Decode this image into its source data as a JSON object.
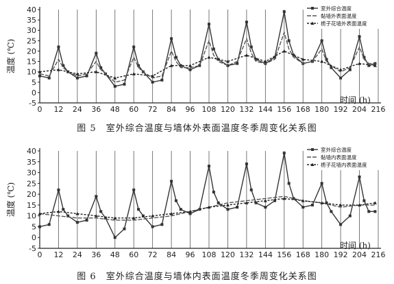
{
  "charts": [
    {
      "caption": "图 5　室外综合温度与墙体外表面温度冬季周变化关系图",
      "chart_data": {
        "type": "line",
        "ylabel": "温度 (℃)",
        "xlabel": "时间 (h)",
        "ylim": [
          -5,
          40
        ],
        "yticks": [
          -5,
          0,
          5,
          10,
          15,
          20,
          25,
          30,
          35,
          40
        ],
        "xlim": [
          0,
          216
        ],
        "xticks": [
          0,
          12,
          24,
          36,
          48,
          60,
          72,
          84,
          96,
          108,
          120,
          132,
          144,
          156,
          168,
          180,
          192,
          204,
          216
        ],
        "grid": "vertical",
        "legend_position": "top-right",
        "series": [
          {
            "name": "室外综合温度",
            "color": "#333333",
            "dash": "",
            "marker": "square",
            "x": [
              0,
              6,
              12,
              15,
              18,
              24,
              30,
              36,
              39,
              42,
              48,
              54,
              60,
              63,
              66,
              72,
              78,
              84,
              87,
              90,
              96,
              102,
              108,
              111,
              114,
              120,
              126,
              132,
              135,
              138,
              144,
              150,
              156,
              159,
              162,
              168,
              174,
              180,
              183,
              186,
              192,
              198,
              204,
              207,
              210,
              214
            ],
            "y": [
              8,
              7,
              22,
              13,
              10,
              7,
              8,
              19,
              12,
              9,
              3,
              4,
              22,
              13,
              10,
              5,
              6,
              26,
              17,
              13,
              11,
              13,
              33,
              21,
              16,
              13,
              14,
              34,
              22,
              16,
              14,
              17,
              39,
              25,
              18,
              14,
              15,
              25,
              16,
              12,
              7,
              11,
              27,
              17,
              13,
              14
            ]
          },
          {
            "name": "黏墙外表面温度",
            "color": "#555555",
            "dash": "6,2",
            "marker": "",
            "x": [
              0,
              6,
              12,
              15,
              18,
              24,
              30,
              36,
              39,
              42,
              48,
              54,
              60,
              63,
              66,
              72,
              78,
              84,
              87,
              90,
              96,
              102,
              108,
              111,
              114,
              120,
              126,
              132,
              135,
              138,
              144,
              150,
              156,
              159,
              162,
              168,
              174,
              180,
              183,
              186,
              192,
              198,
              204,
              207,
              210,
              214
            ],
            "y": [
              9,
              8,
              16,
              12,
              10,
              8,
              9,
              15,
              11,
              9,
              5,
              6,
              17,
              12,
              10,
              7,
              8,
              20,
              15,
              12,
              12,
              13,
              25,
              18,
              15,
              13,
              15,
              26,
              19,
              15,
              14,
              16,
              29,
              21,
              17,
              14,
              15,
              21,
              15,
              13,
              10,
              12,
              22,
              16,
              14,
              14
            ]
          },
          {
            "name": "栀子花墙外表面温度",
            "color": "#222222",
            "dash": "3,2",
            "marker": "triangle",
            "x": [
              0,
              12,
              24,
              36,
              48,
              60,
              72,
              84,
              96,
              108,
              120,
              132,
              144,
              156,
              168,
              180,
              192,
              204,
              214
            ],
            "y": [
              10,
              11,
              9,
              10,
              7,
              9,
              8,
              13,
              13,
              17,
              15,
              18,
              15,
              20,
              16,
              15,
              11,
              14,
              13
            ]
          }
        ]
      }
    },
    {
      "caption": "图 6　室外综合温度与墙体内表面温度冬季周变化关系图",
      "chart_data": {
        "type": "line",
        "ylabel": "温度 (℃)",
        "xlabel": "时间 (h)",
        "ylim": [
          -5,
          40
        ],
        "yticks": [
          -5,
          0,
          5,
          10,
          15,
          20,
          25,
          30,
          35,
          40
        ],
        "xlim": [
          0,
          216
        ],
        "xticks": [
          0,
          12,
          24,
          36,
          48,
          60,
          72,
          84,
          96,
          108,
          120,
          132,
          144,
          156,
          168,
          180,
          192,
          204,
          216
        ],
        "grid": "vertical",
        "legend_position": "top-right",
        "series": [
          {
            "name": "室外综合温度",
            "color": "#333333",
            "dash": "",
            "marker": "square",
            "x": [
              0,
              6,
              12,
              15,
              18,
              24,
              30,
              36,
              39,
              42,
              48,
              54,
              60,
              63,
              66,
              72,
              78,
              84,
              87,
              90,
              96,
              102,
              108,
              111,
              114,
              120,
              126,
              132,
              135,
              138,
              144,
              150,
              156,
              159,
              162,
              168,
              174,
              180,
              183,
              186,
              192,
              198,
              204,
              207,
              210,
              214
            ],
            "y": [
              5,
              6,
              22,
              13,
              10,
              7,
              8,
              19,
              12,
              9,
              0,
              4,
              22,
              13,
              10,
              5,
              6,
              26,
              17,
              13,
              11,
              13,
              33,
              21,
              16,
              13,
              14,
              34,
              22,
              16,
              14,
              17,
              39,
              25,
              18,
              14,
              15,
              25,
              16,
              12,
              6,
              10,
              28,
              17,
              12,
              12
            ]
          },
          {
            "name": "黏墙内表面温度",
            "color": "#555555",
            "dash": "6,2",
            "marker": "",
            "x": [
              0,
              12,
              24,
              36,
              48,
              60,
              72,
              84,
              96,
              108,
              120,
              132,
              144,
              156,
              168,
              180,
              192,
              204,
              214
            ],
            "y": [
              11,
              10,
              9,
              9,
              8,
              8,
              9,
              10,
              12,
              14,
              16,
              17,
              18,
              19,
              17,
              16,
              14,
              15,
              15
            ]
          },
          {
            "name": "栀子花墙内表面温度",
            "color": "#222222",
            "dash": "3,2",
            "marker": "triangle",
            "x": [
              0,
              12,
              24,
              36,
              48,
              60,
              72,
              84,
              96,
              108,
              120,
              132,
              144,
              156,
              168,
              180,
              192,
              204,
              214
            ],
            "y": [
              11,
              12,
              11,
              10,
              9,
              9,
              10,
              11,
              12,
              14,
              15,
              16,
              17,
              18,
              17,
              16,
              15,
              15,
              16
            ]
          }
        ]
      }
    }
  ]
}
